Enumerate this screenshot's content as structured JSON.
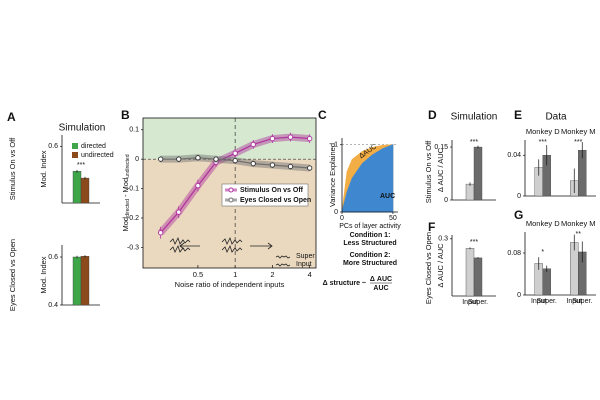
{
  "chart_data": [
    {
      "type": "bar",
      "panel": "A",
      "title": "Simulation",
      "row_label": "Stimulus On vs Off",
      "ylabel": "Mod. Index",
      "categories": [
        null
      ],
      "series": [
        {
          "name": "directed",
          "color": "#3ea548",
          "values": [
            0.49
          ],
          "errors": [
            0.006
          ]
        },
        {
          "name": "undirected",
          "color": "#8b4a1c",
          "values": [
            0.46
          ],
          "errors": [
            0.006
          ]
        }
      ],
      "annotations": [
        {
          "text": "***",
          "color": "#e0201b"
        }
      ],
      "ylim": [
        0.35,
        0.65
      ],
      "yticks": [
        0.6
      ]
    },
    {
      "type": "bar",
      "row_label": "Eyes Closed vs Open",
      "ylabel": "Mod. Index",
      "categories": [
        null
      ],
      "series": [
        {
          "color": "#3ea548",
          "values": [
            0.6
          ],
          "errors": [
            0.005
          ]
        },
        {
          "color": "#8b4a1c",
          "values": [
            0.603
          ],
          "errors": [
            0.005
          ]
        }
      ],
      "ylim": [
        0.4,
        0.65
      ],
      "yticks": [
        0.4,
        0.6
      ]
    },
    {
      "type": "line",
      "panel": "B",
      "xlabel": "Noise ratio of independent inputs",
      "ylabel": [
        "Mod",
        "directed",
        " - Mod",
        "undirected"
      ],
      "x": [
        0.25,
        0.35,
        0.5,
        0.7,
        1,
        1.4,
        2,
        2.8,
        4
      ],
      "series": [
        {
          "name": "Stimulus On vs Off",
          "color": "#b0329e",
          "values": [
            -0.25,
            -0.18,
            -0.09,
            -0.01,
            0.02,
            0.05,
            0.07,
            0.075,
            0.07
          ],
          "errors": [
            0.02,
            0.02,
            0.02,
            0.015,
            0.015,
            0.015,
            0.015,
            0.015,
            0.015
          ]
        },
        {
          "name": "Eyes Closed vs Open",
          "color": "#6e6e6e",
          "values": [
            0.0,
            0.0,
            0.005,
            0.0,
            -0.005,
            -0.015,
            -0.02,
            -0.025,
            -0.03
          ],
          "errors": [
            0.01,
            0.01,
            0.01,
            0.01,
            0.01,
            0.01,
            0.01,
            0.01,
            0.01
          ]
        }
      ],
      "annotations": [
        "Super",
        "Input"
      ],
      "xlim": [
        0.18,
        4.5
      ],
      "xticks": [
        0.5,
        1,
        2,
        4
      ],
      "log_x": true,
      "ylim": [
        -0.37,
        0.14
      ],
      "yticks": [
        -0.3,
        -0.2,
        -0.1,
        0,
        0.1
      ],
      "above_zero_color": "#d6e9d0",
      "below_zero_color": "#ead8bf",
      "vline": 1
    },
    {
      "type": "area",
      "panel": "C",
      "xlabel": "PCs of layer activity",
      "ylabel": "Variance Explained",
      "x": [
        0,
        5,
        10,
        20,
        30,
        40,
        50
      ],
      "series": [
        {
          "name": "Condition 1:",
          "subtitle": "Less Structured",
          "color": "#3f88cf",
          "values": [
            0,
            0.3,
            0.5,
            0.72,
            0.85,
            0.94,
            1
          ]
        },
        {
          "name": "Condition 2:",
          "subtitle": "More Structured",
          "color": "#f2ad45",
          "values": [
            0,
            0.6,
            0.78,
            0.9,
            0.96,
            0.99,
            1
          ]
        }
      ],
      "annotations": [
        "ΔAUC",
        "AUC"
      ],
      "formula": [
        "Δ structure ~",
        "Δ AUC",
        "AUC"
      ],
      "xlim": [
        0,
        55
      ],
      "xticks": [
        0,
        50
      ],
      "ylim": [
        0,
        1.1
      ],
      "yticks": [
        0,
        1
      ],
      "grid": true
    },
    {
      "type": "bar",
      "panel": "D",
      "title": "Simulation",
      "row_label": "Stimulus On vs Off",
      "ylabel": "Δ AUC / AUC",
      "categories": [
        null
      ],
      "series": [
        {
          "color": "#cfcfcf",
          "values": [
            0.045
          ],
          "errors": [
            0.005
          ]
        },
        {
          "color": "#6b6b6b",
          "values": [
            0.15
          ],
          "errors": [
            0.004
          ]
        }
      ],
      "annotations": [
        {
          "text": "***",
          "color": "#e0201b"
        }
      ],
      "ylim": [
        0,
        0.17
      ],
      "yticks": [
        0,
        0.15
      ]
    },
    {
      "type": "bar",
      "panel": "F",
      "row_label": "Eyes Closed vs Open",
      "ylabel": "Δ AUC / AUC",
      "categories": [
        null
      ],
      "bar_labels": [
        "Input",
        "Super."
      ],
      "series": [
        {
          "color": "#cfcfcf",
          "values": [
            0.25
          ],
          "errors": [
            0.005
          ]
        },
        {
          "color": "#6b6b6b",
          "values": [
            0.2
          ],
          "errors": [
            0.004
          ]
        }
      ],
      "annotations": [
        {
          "text": "***",
          "color": "#e0201b"
        }
      ],
      "ylim": [
        0,
        0.32
      ],
      "yticks": [
        0.3
      ]
    },
    {
      "type": "bar",
      "panel": "E",
      "title": "Data",
      "categories": [
        "Monkey D",
        "Monkey M"
      ],
      "series": [
        {
          "color": "#cfcfcf",
          "values": [
            0.028,
            0.015
          ],
          "errors": [
            0.008,
            0.012
          ]
        },
        {
          "color": "#6b6b6b",
          "values": [
            0.04,
            0.045
          ],
          "errors": [
            0.01,
            0.008
          ]
        }
      ],
      "annotations": [
        {
          "text": "***",
          "color": "#e0201b"
        },
        {
          "text": "***",
          "color": "#e0201b"
        }
      ],
      "ylim": [
        0,
        0.055
      ],
      "yticks": [
        0,
        0.04
      ]
    },
    {
      "type": "bar",
      "panel": "G",
      "categories": [
        "Monkey D",
        "Monkey M"
      ],
      "bar_labels": [
        "Input",
        "Super."
      ],
      "series": [
        {
          "color": "#cfcfcf",
          "values": [
            0.06,
            0.1
          ],
          "errors": [
            0.012,
            0.015
          ]
        },
        {
          "color": "#6b6b6b",
          "values": [
            0.05,
            0.082
          ],
          "errors": [
            0.006,
            0.02
          ]
        }
      ],
      "annotations": [
        {
          "text": "*",
          "color": "#222222"
        },
        {
          "text": "**",
          "color": "#2a5db0"
        }
      ],
      "ylim": [
        0,
        0.12
      ],
      "yticks": [
        0,
        0.08
      ]
    }
  ]
}
